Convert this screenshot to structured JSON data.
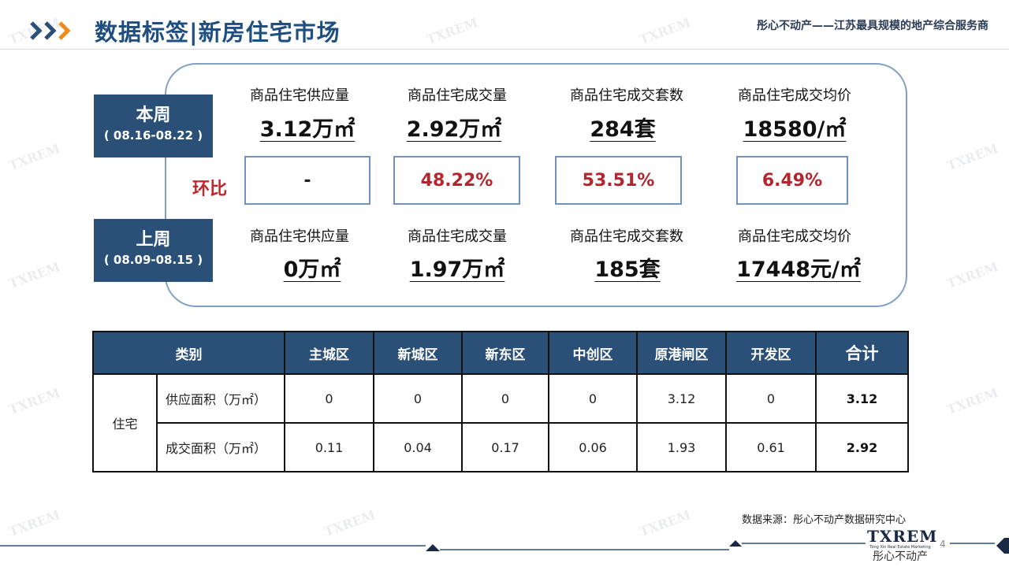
{
  "header": {
    "title": "数据标签|新房住宅市场",
    "tagline": "彤心不动产——江苏最具规模的地产综合服务商"
  },
  "summary": {
    "current_week": {
      "label": "本周",
      "range": "( 08.16-08.22 )"
    },
    "previous_week": {
      "label": "上周",
      "range": "( 08.09-08.15 )"
    },
    "huanbi_label": "环比",
    "metrics": [
      {
        "label": "商品住宅供应量",
        "current": "3.12万㎡",
        "previous": "0万㎡",
        "change": "-"
      },
      {
        "label": "商品住宅成交量",
        "current": "2.92万㎡",
        "previous": "1.97万㎡",
        "change": "48.22%"
      },
      {
        "label": "商品住宅成交套数",
        "current": "284套",
        "previous": "185套",
        "change": "53.51%"
      },
      {
        "label": "商品住宅成交均价",
        "current": "18580/㎡",
        "previous": "17448元/㎡",
        "change": "6.49%"
      }
    ]
  },
  "table": {
    "category_header": "类别",
    "columns": [
      "主城区",
      "新城区",
      "新东区",
      "中创区",
      "原港闸区",
      "开发区",
      "合计"
    ],
    "group_label": "住宅",
    "rows": [
      {
        "label": "供应面积（万㎡）",
        "values": [
          "0",
          "0",
          "0",
          "0",
          "3.12",
          "0",
          "3.12"
        ]
      },
      {
        "label": "成交面积（万㎡）",
        "values": [
          "0.11",
          "0.04",
          "0.17",
          "0.06",
          "1.93",
          "0.61",
          "2.92"
        ]
      }
    ]
  },
  "source": "数据来源：彤心不动产数据研究中心",
  "footer": {
    "logo_text": "TXREM",
    "logo_sub": "Tong Xin Real Estate Marketing",
    "logo_cn": "彤心不动产",
    "page_number": "4"
  },
  "colors": {
    "title": "#1e4f80",
    "navy": "#2b5078",
    "panel_border": "#7fa0c4",
    "accent_red": "#c0272d",
    "chevron": "#f08a1c"
  },
  "icons": {
    "header_arrows": "triple-chevron-icon"
  }
}
